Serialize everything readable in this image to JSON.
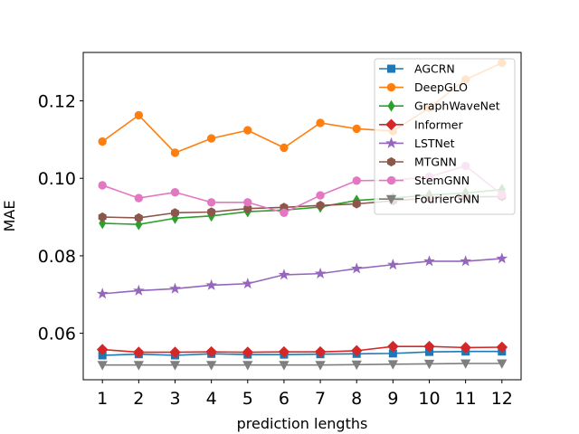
{
  "chart_data": {
    "type": "line",
    "title": "",
    "xlabel": "prediction lengths",
    "ylabel": "MAE",
    "x": [
      1,
      2,
      3,
      4,
      5,
      6,
      7,
      8,
      9,
      10,
      11,
      12
    ],
    "xticks": [
      "1",
      "2",
      "3",
      "4",
      "5",
      "6",
      "7",
      "8",
      "9",
      "10",
      "11",
      "12"
    ],
    "ylim": [
      0.048,
      0.1325
    ],
    "yticks": [
      0.06,
      0.08,
      0.1,
      0.12
    ],
    "ytick_labels": [
      "0.06",
      "0.08",
      "0.10",
      "0.12"
    ],
    "legend_position": "top-right",
    "grid": false,
    "series": [
      {
        "name": "AGCRN",
        "color": "#1f77b4",
        "marker": "square",
        "values": [
          0.0543,
          0.0546,
          0.0543,
          0.0547,
          0.0545,
          0.0545,
          0.0546,
          0.0547,
          0.0548,
          0.0552,
          0.0553,
          0.0553
        ]
      },
      {
        "name": "DeepGLO",
        "color": "#ff7f0e",
        "marker": "circle",
        "values": [
          0.1095,
          0.1163,
          0.1066,
          0.1103,
          0.1124,
          0.1079,
          0.1143,
          0.1128,
          0.1122,
          0.1182,
          0.1255,
          0.1298
        ]
      },
      {
        "name": "GraphWaveNet",
        "color": "#2ca02c",
        "marker": "thin_diamond",
        "values": [
          0.0884,
          0.0881,
          0.0897,
          0.0903,
          0.0914,
          0.0918,
          0.0926,
          0.0943,
          0.0949,
          0.0957,
          0.0962,
          0.0971
        ]
      },
      {
        "name": "Informer",
        "color": "#d62728",
        "marker": "diamond",
        "values": [
          0.0558,
          0.0551,
          0.0551,
          0.0552,
          0.0551,
          0.0552,
          0.0552,
          0.0555,
          0.0566,
          0.0566,
          0.0563,
          0.0564
        ]
      },
      {
        "name": "LSTNet",
        "color": "#9467bd",
        "marker": "star",
        "values": [
          0.0702,
          0.071,
          0.0715,
          0.0724,
          0.0728,
          0.0751,
          0.0754,
          0.0767,
          0.0777,
          0.0786,
          0.0786,
          0.0793
        ]
      },
      {
        "name": "MTGNN",
        "color": "#8c564b",
        "marker": "hexagon",
        "values": [
          0.09,
          0.0898,
          0.0911,
          0.0913,
          0.0922,
          0.0925,
          0.093,
          0.0934,
          0.0942,
          0.0949,
          0.0952,
          0.0953
        ]
      },
      {
        "name": "StemGNN",
        "color": "#e377c2",
        "marker": "circle",
        "values": [
          0.0982,
          0.0949,
          0.0964,
          0.0938,
          0.0938,
          0.0911,
          0.0956,
          0.0994,
          0.0995,
          0.1004,
          0.1032,
          0.0958
        ]
      },
      {
        "name": "FourierGNN",
        "color": "#7f7f7f",
        "marker": "triangle_down",
        "values": [
          0.0518,
          0.0518,
          0.0518,
          0.0518,
          0.0518,
          0.0518,
          0.0518,
          0.0519,
          0.052,
          0.0521,
          0.0522,
          0.0522
        ]
      }
    ]
  }
}
